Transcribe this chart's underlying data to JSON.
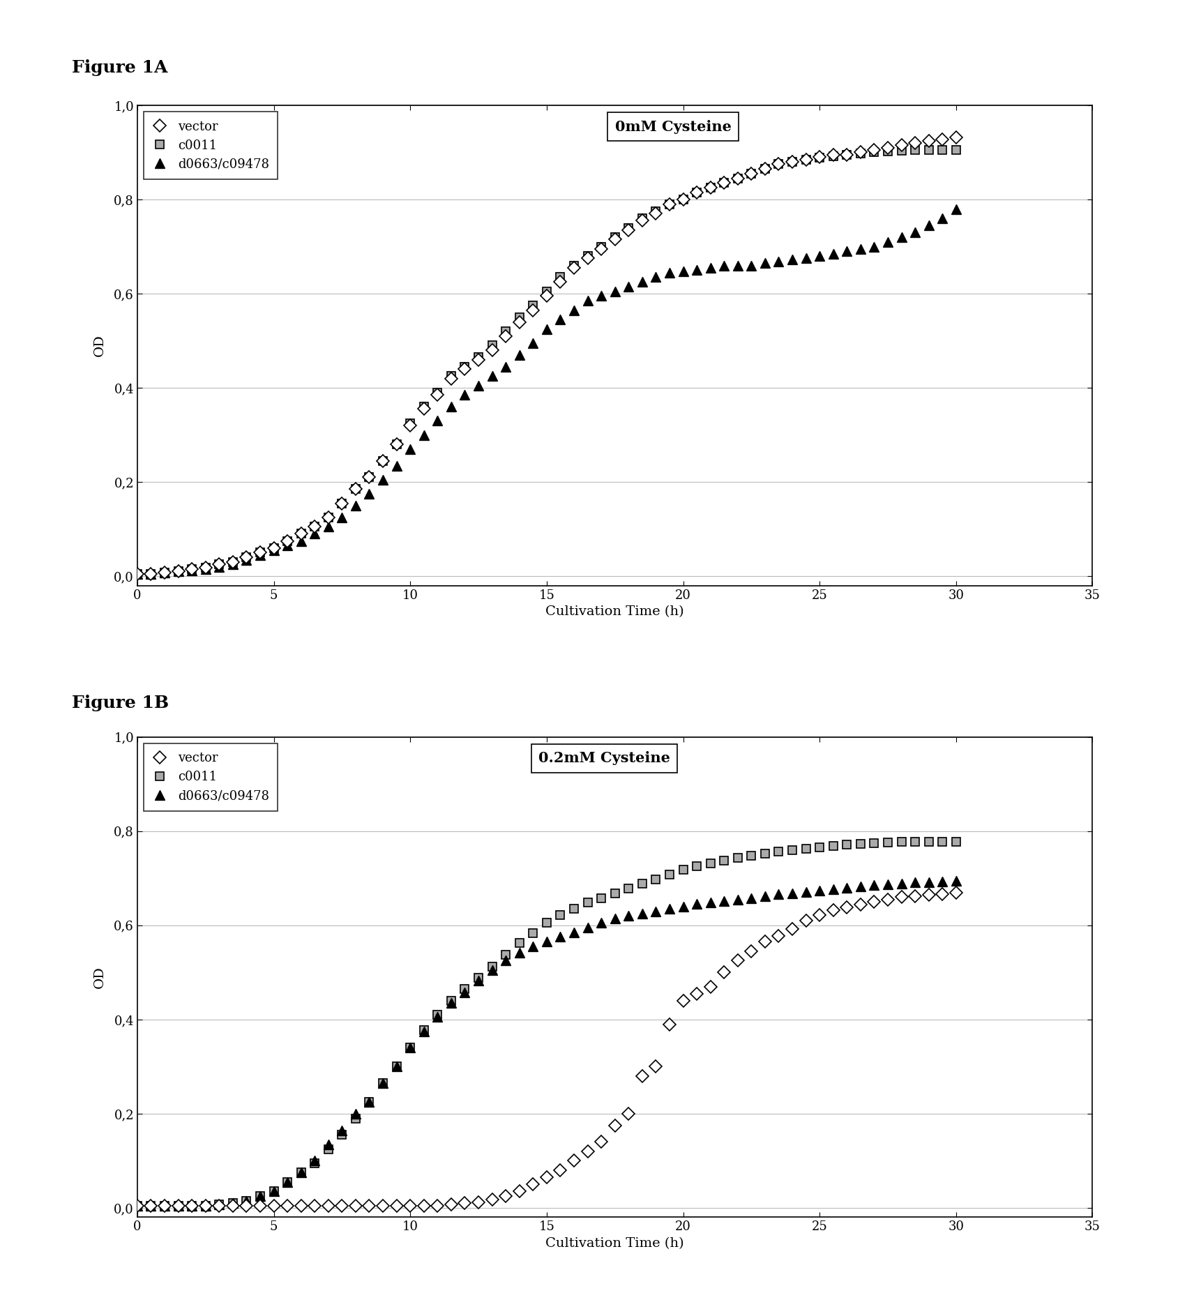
{
  "fig1A_title": "Figure 1A",
  "fig1B_title": "Figure 1B",
  "annotation_A": "0mM Cysteine",
  "annotation_B": "0.2mM Cysteine",
  "xlabel": "Cultivation Time (h)",
  "ylabel": "OD",
  "xlim": [
    0,
    35
  ],
  "ylim": [
    0.0,
    1.0
  ],
  "yticks": [
    0.0,
    0.2,
    0.4,
    0.6,
    0.8,
    1.0
  ],
  "ytick_labels": [
    "0,0",
    "0,2",
    "0,4",
    "0,6",
    "0,8",
    "1,0"
  ],
  "xticks": [
    0,
    5,
    10,
    15,
    20,
    25,
    30,
    35
  ],
  "legend_labels": [
    "vector",
    "c0011",
    "d0663/c09478"
  ],
  "fig1A": {
    "vector_x": [
      0,
      0.5,
      1,
      1.5,
      2,
      2.5,
      3,
      3.5,
      4,
      4.5,
      5,
      5.5,
      6,
      6.5,
      7,
      7.5,
      8,
      8.5,
      9,
      9.5,
      10,
      10.5,
      11,
      11.5,
      12,
      12.5,
      13,
      13.5,
      14,
      14.5,
      15,
      15.5,
      16,
      16.5,
      17,
      17.5,
      18,
      18.5,
      19,
      19.5,
      20,
      20.5,
      21,
      21.5,
      22,
      22.5,
      23,
      23.5,
      24,
      24.5,
      25,
      25.5,
      26,
      26.5,
      27,
      27.5,
      28,
      28.5,
      29,
      29.5,
      30
    ],
    "vector_y": [
      0.005,
      0.005,
      0.008,
      0.01,
      0.015,
      0.018,
      0.025,
      0.03,
      0.04,
      0.05,
      0.06,
      0.075,
      0.09,
      0.105,
      0.125,
      0.155,
      0.185,
      0.21,
      0.245,
      0.28,
      0.32,
      0.355,
      0.385,
      0.42,
      0.44,
      0.46,
      0.48,
      0.51,
      0.54,
      0.565,
      0.595,
      0.625,
      0.655,
      0.675,
      0.695,
      0.715,
      0.735,
      0.755,
      0.77,
      0.79,
      0.8,
      0.815,
      0.825,
      0.835,
      0.845,
      0.855,
      0.865,
      0.875,
      0.88,
      0.885,
      0.89,
      0.895,
      0.895,
      0.9,
      0.905,
      0.91,
      0.915,
      0.92,
      0.925,
      0.928,
      0.932
    ],
    "c0011_x": [
      0,
      0.5,
      1,
      1.5,
      2,
      2.5,
      3,
      3.5,
      4,
      4.5,
      5,
      5.5,
      6,
      6.5,
      7,
      7.5,
      8,
      8.5,
      9,
      9.5,
      10,
      10.5,
      11,
      11.5,
      12,
      12.5,
      13,
      13.5,
      14,
      14.5,
      15,
      15.5,
      16,
      16.5,
      17,
      17.5,
      18,
      18.5,
      19,
      19.5,
      20,
      20.5,
      21,
      21.5,
      22,
      22.5,
      23,
      23.5,
      24,
      24.5,
      25,
      25.5,
      26,
      26.5,
      27,
      27.5,
      28,
      28.5,
      29,
      29.5,
      30
    ],
    "c0011_y": [
      0.005,
      0.005,
      0.008,
      0.01,
      0.015,
      0.018,
      0.025,
      0.03,
      0.04,
      0.05,
      0.06,
      0.075,
      0.09,
      0.105,
      0.125,
      0.155,
      0.185,
      0.21,
      0.245,
      0.28,
      0.325,
      0.36,
      0.39,
      0.425,
      0.445,
      0.465,
      0.49,
      0.52,
      0.55,
      0.575,
      0.605,
      0.635,
      0.66,
      0.68,
      0.7,
      0.72,
      0.74,
      0.76,
      0.775,
      0.79,
      0.8,
      0.815,
      0.825,
      0.835,
      0.845,
      0.855,
      0.865,
      0.875,
      0.88,
      0.885,
      0.889,
      0.892,
      0.895,
      0.898,
      0.9,
      0.902,
      0.904,
      0.905,
      0.905,
      0.905,
      0.905
    ],
    "d0663_x": [
      0,
      0.5,
      1,
      1.5,
      2,
      2.5,
      3,
      3.5,
      4,
      4.5,
      5,
      5.5,
      6,
      6.5,
      7,
      7.5,
      8,
      8.5,
      9,
      9.5,
      10,
      10.5,
      11,
      11.5,
      12,
      12.5,
      13,
      13.5,
      14,
      14.5,
      15,
      15.5,
      16,
      16.5,
      17,
      17.5,
      18,
      18.5,
      19,
      19.5,
      20,
      20.5,
      21,
      21.5,
      22,
      22.5,
      23,
      23.5,
      24,
      24.5,
      25,
      25.5,
      26,
      26.5,
      27,
      27.5,
      28,
      28.5,
      29,
      29.5,
      30
    ],
    "d0663_y": [
      0.005,
      0.005,
      0.008,
      0.01,
      0.012,
      0.015,
      0.02,
      0.025,
      0.035,
      0.045,
      0.055,
      0.065,
      0.075,
      0.09,
      0.105,
      0.125,
      0.15,
      0.175,
      0.205,
      0.235,
      0.27,
      0.3,
      0.33,
      0.36,
      0.385,
      0.405,
      0.425,
      0.445,
      0.47,
      0.495,
      0.525,
      0.545,
      0.565,
      0.585,
      0.595,
      0.605,
      0.615,
      0.625,
      0.635,
      0.645,
      0.648,
      0.65,
      0.655,
      0.66,
      0.66,
      0.66,
      0.665,
      0.668,
      0.672,
      0.676,
      0.68,
      0.685,
      0.69,
      0.695,
      0.7,
      0.71,
      0.72,
      0.73,
      0.745,
      0.76,
      0.78
    ]
  },
  "fig1B": {
    "vector_x": [
      0,
      0.5,
      1,
      1.5,
      2,
      2.5,
      3,
      3.5,
      4,
      4.5,
      5,
      5.5,
      6,
      6.5,
      7,
      7.5,
      8,
      8.5,
      9,
      9.5,
      10,
      10.5,
      11,
      11.5,
      12,
      12.5,
      13,
      13.5,
      14,
      14.5,
      15,
      15.5,
      16,
      16.5,
      17,
      17.5,
      18,
      18.5,
      19,
      19.5,
      20,
      20.5,
      21,
      21.5,
      22,
      22.5,
      23,
      23.5,
      24,
      24.5,
      25,
      25.5,
      26,
      26.5,
      27,
      27.5,
      28,
      28.5,
      29,
      29.5,
      30
    ],
    "vector_y": [
      0.005,
      0.005,
      0.005,
      0.005,
      0.005,
      0.005,
      0.005,
      0.005,
      0.005,
      0.005,
      0.005,
      0.005,
      0.005,
      0.005,
      0.005,
      0.005,
      0.005,
      0.005,
      0.005,
      0.005,
      0.005,
      0.005,
      0.005,
      0.008,
      0.01,
      0.012,
      0.018,
      0.025,
      0.035,
      0.05,
      0.065,
      0.08,
      0.1,
      0.12,
      0.14,
      0.175,
      0.2,
      0.28,
      0.3,
      0.39,
      0.44,
      0.455,
      0.47,
      0.5,
      0.525,
      0.545,
      0.565,
      0.578,
      0.592,
      0.61,
      0.622,
      0.632,
      0.638,
      0.644,
      0.65,
      0.655,
      0.66,
      0.662,
      0.665,
      0.667,
      0.669
    ],
    "c0011_x": [
      0,
      0.5,
      1,
      1.5,
      2,
      2.5,
      3,
      3.5,
      4,
      4.5,
      5,
      5.5,
      6,
      6.5,
      7,
      7.5,
      8,
      8.5,
      9,
      9.5,
      10,
      10.5,
      11,
      11.5,
      12,
      12.5,
      13,
      13.5,
      14,
      14.5,
      15,
      15.5,
      16,
      16.5,
      17,
      17.5,
      18,
      18.5,
      19,
      19.5,
      20,
      20.5,
      21,
      21.5,
      22,
      22.5,
      23,
      23.5,
      24,
      24.5,
      25,
      25.5,
      26,
      26.5,
      27,
      27.5,
      28,
      28.5,
      29,
      29.5,
      30
    ],
    "c0011_y": [
      0.005,
      0.005,
      0.005,
      0.005,
      0.005,
      0.005,
      0.008,
      0.01,
      0.015,
      0.025,
      0.035,
      0.055,
      0.075,
      0.095,
      0.125,
      0.155,
      0.19,
      0.225,
      0.265,
      0.3,
      0.34,
      0.378,
      0.41,
      0.44,
      0.465,
      0.488,
      0.512,
      0.538,
      0.562,
      0.583,
      0.605,
      0.622,
      0.636,
      0.648,
      0.658,
      0.668,
      0.678,
      0.688,
      0.698,
      0.708,
      0.718,
      0.726,
      0.732,
      0.738,
      0.743,
      0.748,
      0.752,
      0.756,
      0.76,
      0.763,
      0.766,
      0.769,
      0.771,
      0.773,
      0.775,
      0.776,
      0.777,
      0.778,
      0.778,
      0.778,
      0.778
    ],
    "d0663_x": [
      0,
      0.5,
      1,
      1.5,
      2,
      2.5,
      3,
      3.5,
      4,
      4.5,
      5,
      5.5,
      6,
      6.5,
      7,
      7.5,
      8,
      8.5,
      9,
      9.5,
      10,
      10.5,
      11,
      11.5,
      12,
      12.5,
      13,
      13.5,
      14,
      14.5,
      15,
      15.5,
      16,
      16.5,
      17,
      17.5,
      18,
      18.5,
      19,
      19.5,
      20,
      20.5,
      21,
      21.5,
      22,
      22.5,
      23,
      23.5,
      24,
      24.5,
      25,
      25.5,
      26,
      26.5,
      27,
      27.5,
      28,
      28.5,
      29,
      29.5,
      30
    ],
    "d0663_y": [
      0.005,
      0.005,
      0.005,
      0.005,
      0.005,
      0.005,
      0.008,
      0.01,
      0.015,
      0.025,
      0.035,
      0.055,
      0.075,
      0.1,
      0.135,
      0.165,
      0.2,
      0.225,
      0.265,
      0.3,
      0.34,
      0.375,
      0.405,
      0.435,
      0.458,
      0.482,
      0.505,
      0.525,
      0.542,
      0.555,
      0.565,
      0.576,
      0.585,
      0.595,
      0.605,
      0.614,
      0.62,
      0.625,
      0.63,
      0.635,
      0.64,
      0.645,
      0.648,
      0.652,
      0.655,
      0.658,
      0.662,
      0.666,
      0.668,
      0.671,
      0.674,
      0.677,
      0.68,
      0.682,
      0.685,
      0.687,
      0.689,
      0.691,
      0.692,
      0.693,
      0.694
    ]
  },
  "background_color": "#ffffff",
  "title_fontsize": 18,
  "label_fontsize": 14,
  "tick_fontsize": 13,
  "legend_fontsize": 13,
  "annotation_fontsize": 15
}
